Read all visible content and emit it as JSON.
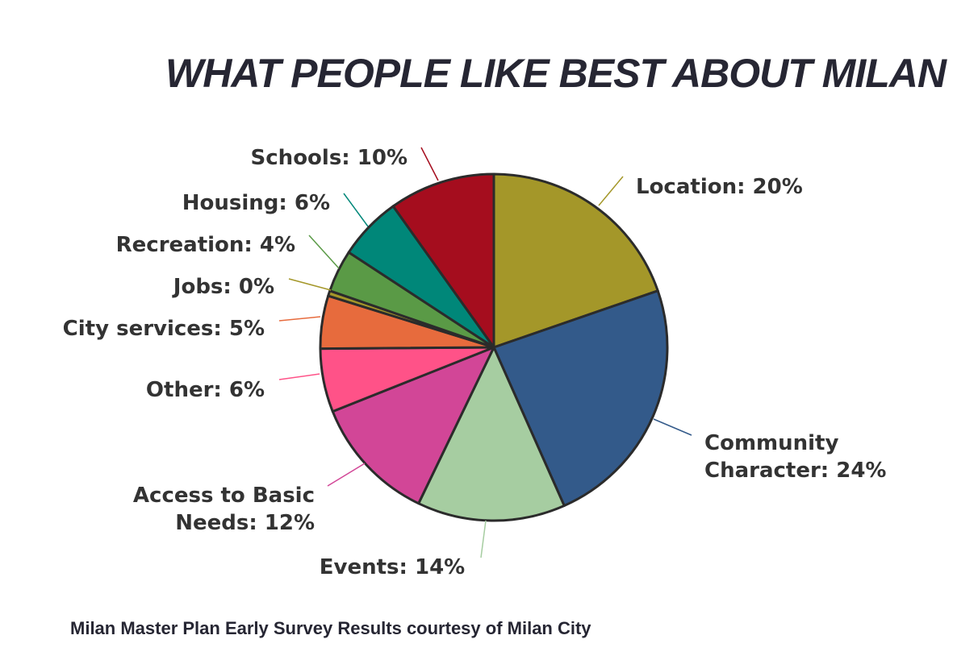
{
  "chart_data": {
    "type": "pie",
    "title": "What People Like Best About Milan",
    "footer": "Milan Master Plan Early Survey Results courtesy of Milan City",
    "slices": [
      {
        "name": "Location",
        "label": "Location: 20%",
        "value": 20,
        "color": "#A49729"
      },
      {
        "name": "Community Character",
        "label_lines": [
          "Community",
          "Character: 24%"
        ],
        "value": 24,
        "color": "#335A8A"
      },
      {
        "name": "Events",
        "label": "Events: 14%",
        "value": 14,
        "color": "#A6CDA1"
      },
      {
        "name": "Access to Basic Needs",
        "label_lines": [
          "Access to Basic",
          "Needs: 12%"
        ],
        "value": 12,
        "color": "#D24697"
      },
      {
        "name": "Other",
        "label": "Other: 6%",
        "value": 6,
        "color": "#FF5288"
      },
      {
        "name": "City services",
        "label": "City services: 5%",
        "value": 5,
        "color": "#E76B3D"
      },
      {
        "name": "Jobs",
        "label": "Jobs: 0%",
        "value": 0.5,
        "color": "#A49729"
      },
      {
        "name": "Recreation",
        "label": "Recreation: 4%",
        "value": 4,
        "color": "#5A9A46"
      },
      {
        "name": "Housing",
        "label": "Housing: 6%",
        "value": 6,
        "color": "#008779"
      },
      {
        "name": "Schools",
        "label": "Schools: 10%",
        "value": 10,
        "color": "#A50D1E"
      }
    ]
  }
}
